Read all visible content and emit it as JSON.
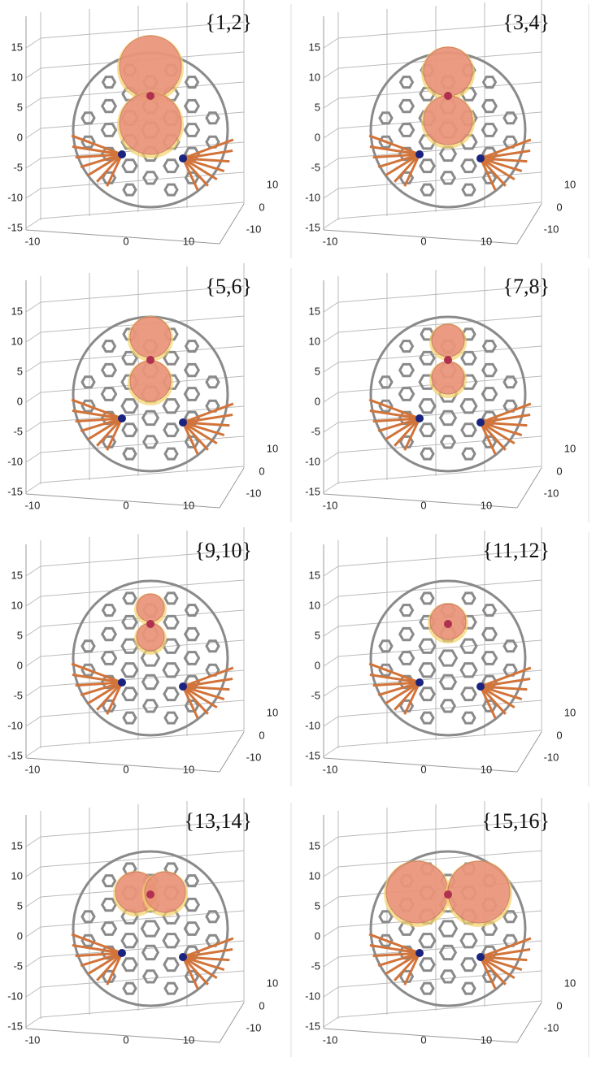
{
  "axes": {
    "zticks": [
      15,
      10,
      5,
      0,
      -5,
      -10,
      -15
    ],
    "xticks": [
      -10,
      0,
      10
    ],
    "yticks": [
      10,
      0,
      -10
    ]
  },
  "panels": [
    {
      "label": "{1,2}"
    },
    {
      "label": "{3,4}"
    },
    {
      "label": "{5,6}"
    },
    {
      "label": "{7,8}"
    },
    {
      "label": "{9,10}"
    },
    {
      "label": "{11,12}"
    },
    {
      "label": "{13,14}"
    },
    {
      "label": "{15,16}"
    }
  ]
}
